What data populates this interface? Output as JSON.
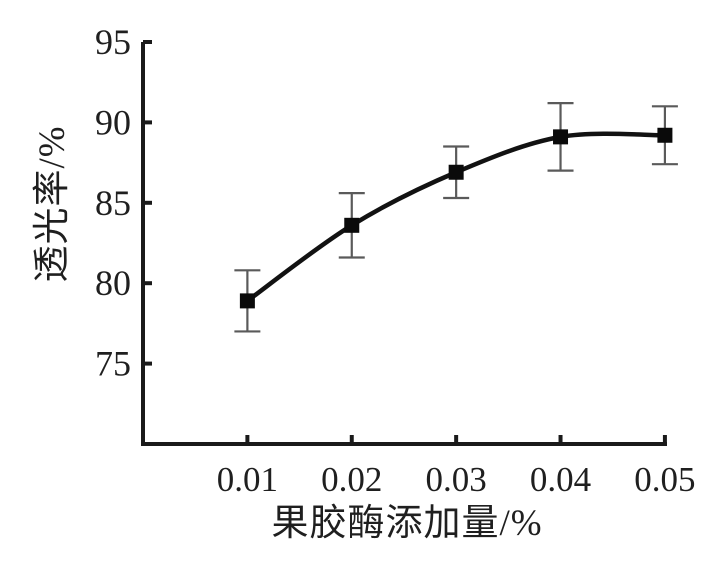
{
  "figure": {
    "background": "#ffffff",
    "axis_color": "#1a1a1a",
    "curve_color": "#121212",
    "marker_color": "#0a0a0a",
    "error_bar_color": "#5a5a5a",
    "text_color": "#1f1f1f"
  },
  "chart_data": {
    "type": "line",
    "x": [
      0.01,
      0.02,
      0.03,
      0.04,
      0.05
    ],
    "x_tick_labels": [
      "0.01",
      "0.02",
      "0.03",
      "0.04",
      "0.05"
    ],
    "series": [
      {
        "name": "透光率",
        "marker": "filled-square",
        "line_style": "smooth",
        "values": [
          78.9,
          83.6,
          86.9,
          89.1,
          89.2
        ],
        "errors": [
          1.9,
          2.0,
          1.6,
          2.1,
          1.8
        ]
      }
    ],
    "title": "",
    "xlabel": "果胶酶添加量/%",
    "ylabel": "透光率/%",
    "xlim": [
      0,
      0.0502
    ],
    "ylim": [
      70,
      95
    ],
    "yticks": [
      75,
      80,
      85,
      90,
      95
    ],
    "ytick_labels": [
      "75",
      "80",
      "85",
      "90",
      "95"
    ],
    "grid": false,
    "legend": false
  }
}
